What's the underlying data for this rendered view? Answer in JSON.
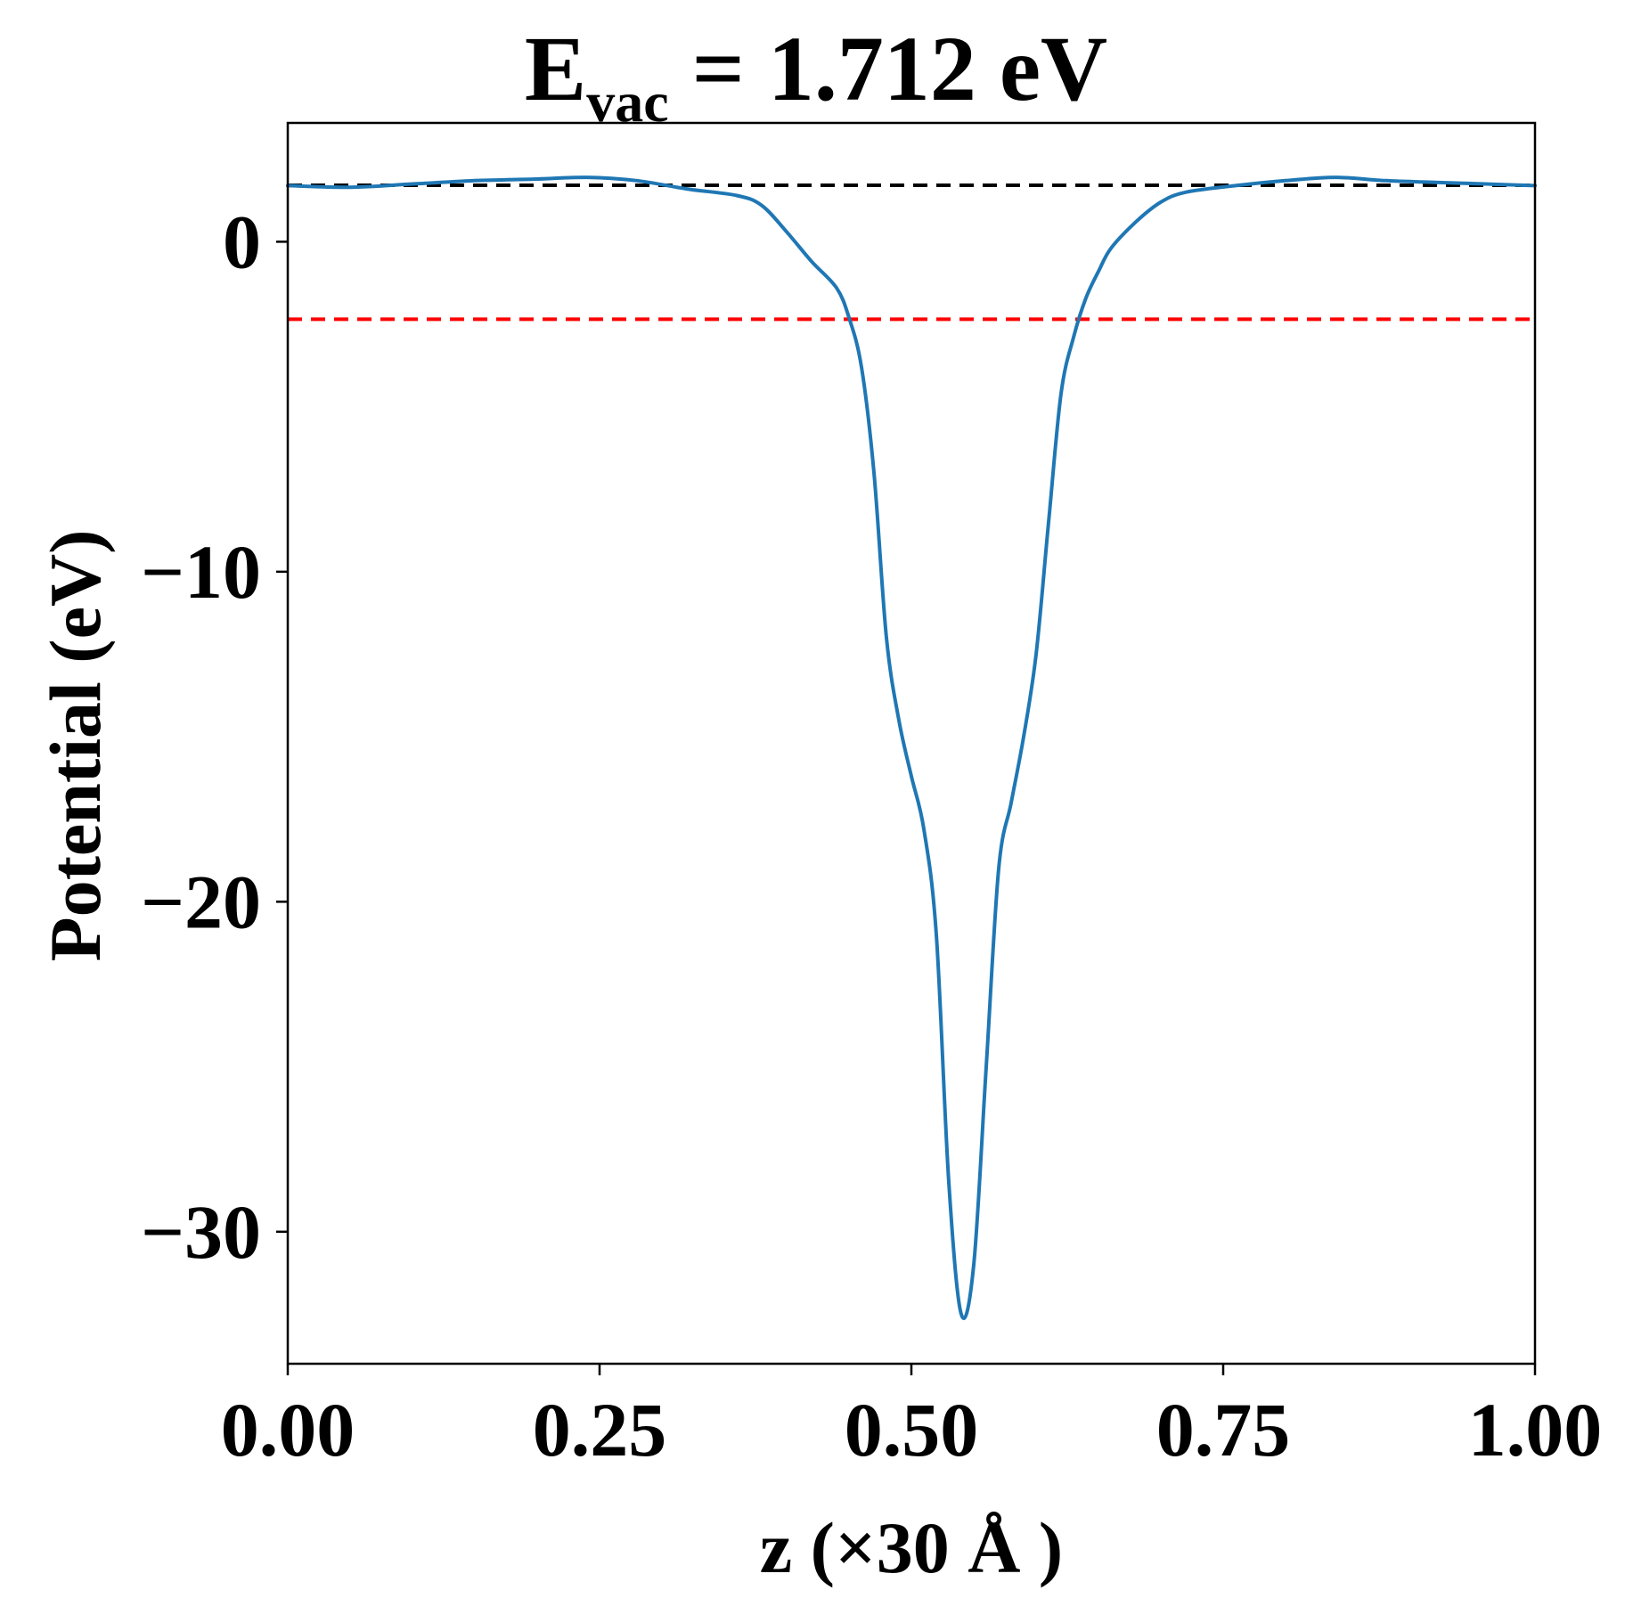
{
  "chart_data": {
    "type": "line",
    "title": {
      "main": "E",
      "subscript": "vac",
      "rest": " = 1.712 eV"
    },
    "xlabel": "z (×30 Å )",
    "ylabel": "Potential (eV)",
    "xlim": [
      0.0,
      1.0
    ],
    "ylim": [
      -34.0,
      3.6
    ],
    "x_ticks": [
      0.0,
      0.25,
      0.5,
      0.75,
      1.0
    ],
    "x_tick_labels": [
      "0.00",
      "0.25",
      "0.50",
      "0.75",
      "1.00"
    ],
    "y_ticks": [
      0,
      -10,
      -20,
      -30
    ],
    "y_tick_labels": [
      "0",
      "−10",
      "−20",
      "−30"
    ],
    "grid": false,
    "legend": "none",
    "reference_lines": [
      {
        "y": 1.712,
        "color": "#000000",
        "style": "dashed"
      },
      {
        "y": -2.35,
        "color": "#ff0000",
        "style": "dashed"
      }
    ],
    "series": [
      {
        "color": "#1f77b4",
        "x": [
          0.0,
          0.05,
          0.1,
          0.15,
          0.2,
          0.24,
          0.28,
          0.32,
          0.36,
          0.38,
          0.4,
          0.42,
          0.44,
          0.45,
          0.46,
          0.47,
          0.48,
          0.49,
          0.5,
          0.51,
          0.52,
          0.53,
          0.54,
          0.55,
          0.56,
          0.57,
          0.58,
          0.59,
          0.6,
          0.61,
          0.62,
          0.63,
          0.64,
          0.65,
          0.66,
          0.68,
          0.7,
          0.72,
          0.76,
          0.8,
          0.84,
          0.88,
          0.92,
          0.96,
          1.0
        ],
        "y": [
          1.7,
          1.65,
          1.75,
          1.85,
          1.9,
          1.95,
          1.85,
          1.6,
          1.4,
          1.1,
          0.3,
          -0.6,
          -1.4,
          -2.3,
          -3.8,
          -7.0,
          -12.0,
          -14.5,
          -16.2,
          -17.8,
          -21.0,
          -28.5,
          -32.5,
          -31.0,
          -25.0,
          -19.0,
          -17.0,
          -15.0,
          -12.5,
          -8.5,
          -4.6,
          -2.9,
          -1.7,
          -0.9,
          -0.2,
          0.6,
          1.2,
          1.5,
          1.7,
          1.85,
          1.95,
          1.85,
          1.8,
          1.75,
          1.7
        ]
      }
    ]
  }
}
